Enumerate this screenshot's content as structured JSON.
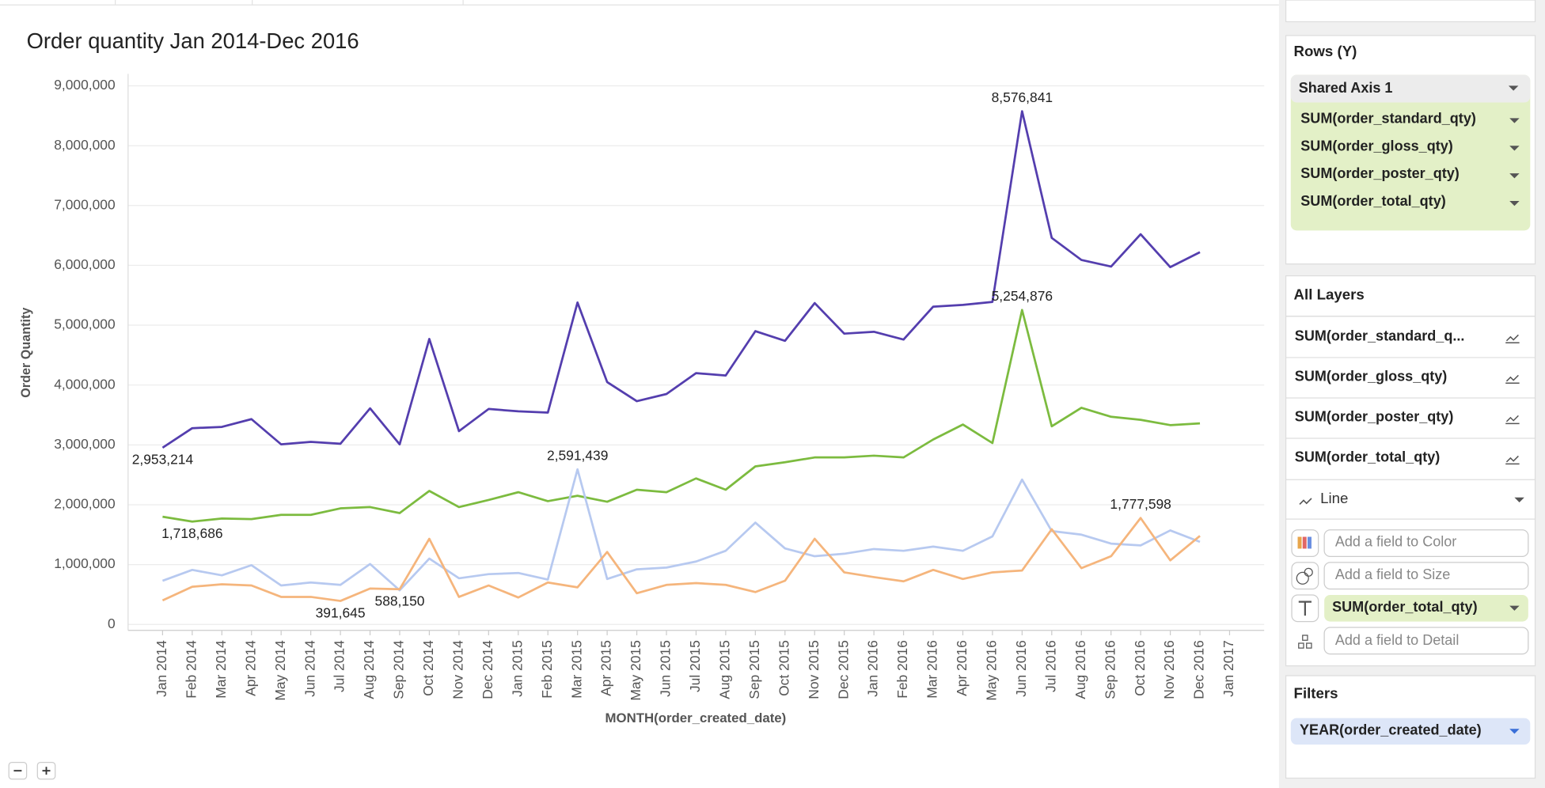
{
  "chart_data": {
    "type": "line",
    "title": "Order quantity Jan 2014-Dec 2016",
    "x_label": "MONTH(order_created_date)",
    "y_label": "Order Quantity",
    "categories": [
      "Jan 2014",
      "Feb 2014",
      "Mar 2014",
      "Apr 2014",
      "May 2014",
      "Jun 2014",
      "Jul 2014",
      "Aug 2014",
      "Sep 2014",
      "Oct 2014",
      "Nov 2014",
      "Dec 2014",
      "Jan 2015",
      "Feb 2015",
      "Mar 2015",
      "Apr 2015",
      "May 2015",
      "Jun 2015",
      "Jul 2015",
      "Aug 2015",
      "Sep 2015",
      "Oct 2015",
      "Nov 2015",
      "Dec 2015",
      "Jan 2016",
      "Feb 2016",
      "Mar 2016",
      "Apr 2016",
      "May 2016",
      "Jun 2016",
      "Jul 2016",
      "Aug 2016",
      "Sep 2016",
      "Oct 2016",
      "Nov 2016",
      "Dec 2016",
      "Jan 2017"
    ],
    "series": [
      {
        "name": "SUM(order_standard_qty)",
        "color": "#7cbb3f",
        "values": [
          1800000,
          1718686,
          1770000,
          1760000,
          1830000,
          1830000,
          1940000,
          1960000,
          1860000,
          2230000,
          1960000,
          2080000,
          2210000,
          2060000,
          2150000,
          2050000,
          2250000,
          2210000,
          2440000,
          2250000,
          2640000,
          2710000,
          2790000,
          2790000,
          2820000,
          2790000,
          3090000,
          3340000,
          3030000,
          5254876,
          3310000,
          3620000,
          3470000,
          3420000,
          3330000,
          3360000,
          null
        ],
        "value_labels": [
          null,
          "1,718,686",
          null,
          null,
          null,
          null,
          null,
          null,
          null,
          null,
          null,
          null,
          null,
          null,
          null,
          null,
          null,
          null,
          null,
          null,
          null,
          null,
          null,
          null,
          null,
          null,
          null,
          null,
          null,
          "5,254,876",
          null,
          null,
          null,
          null,
          null,
          null,
          null
        ]
      },
      {
        "name": "SUM(order_gloss_qty)",
        "color": "#b7c9f0",
        "values": [
          730000,
          910000,
          820000,
          990000,
          650000,
          700000,
          660000,
          1010000,
          570000,
          1100000,
          770000,
          840000,
          860000,
          750000,
          2591439,
          760000,
          920000,
          950000,
          1050000,
          1230000,
          1700000,
          1270000,
          1140000,
          1180000,
          1260000,
          1230000,
          1300000,
          1230000,
          1470000,
          2420000,
          1560000,
          1500000,
          1350000,
          1320000,
          1570000,
          1380000,
          null
        ],
        "value_labels": [
          null,
          null,
          null,
          null,
          null,
          null,
          null,
          null,
          null,
          null,
          null,
          null,
          null,
          null,
          "2,591,439",
          null,
          null,
          null,
          null,
          null,
          null,
          null,
          null,
          null,
          null,
          null,
          null,
          null,
          null,
          null,
          null,
          null,
          null,
          null,
          null,
          null,
          null
        ]
      },
      {
        "name": "SUM(order_poster_qty)",
        "color": "#f5b57c",
        "values": [
          400000,
          630000,
          670000,
          650000,
          460000,
          460000,
          391645,
          600000,
          588150,
          1430000,
          460000,
          650000,
          450000,
          700000,
          620000,
          1210000,
          520000,
          660000,
          690000,
          660000,
          540000,
          730000,
          1430000,
          870000,
          790000,
          720000,
          910000,
          760000,
          870000,
          900000,
          1590000,
          940000,
          1140000,
          1777598,
          1070000,
          1480000,
          null
        ],
        "value_labels": [
          null,
          null,
          null,
          null,
          null,
          null,
          "391,645",
          null,
          "588,150",
          null,
          null,
          null,
          null,
          null,
          null,
          null,
          null,
          null,
          null,
          null,
          null,
          null,
          null,
          null,
          null,
          null,
          null,
          null,
          null,
          null,
          null,
          null,
          null,
          "1,777,598",
          null,
          null,
          null
        ]
      },
      {
        "name": "SUM(order_total_qty)",
        "color": "#543eae",
        "values": [
          2953214,
          3280000,
          3300000,
          3430000,
          3010000,
          3050000,
          3020000,
          3610000,
          3010000,
          4770000,
          3230000,
          3600000,
          3560000,
          3540000,
          5380000,
          4050000,
          3730000,
          3850000,
          4200000,
          4160000,
          4900000,
          4740000,
          5370000,
          4860000,
          4890000,
          4760000,
          5310000,
          5340000,
          5390000,
          8576841,
          6460000,
          6090000,
          5980000,
          6520000,
          5970000,
          6220000,
          null
        ],
        "value_labels": [
          "2,953,214",
          null,
          null,
          null,
          null,
          null,
          null,
          null,
          null,
          null,
          null,
          null,
          null,
          null,
          null,
          null,
          null,
          null,
          null,
          null,
          null,
          null,
          null,
          null,
          null,
          null,
          null,
          null,
          null,
          "8,576,841",
          null,
          null,
          null,
          null,
          null,
          null,
          null
        ]
      }
    ],
    "ylim": [
      -100000,
      9200000
    ],
    "yticks": [
      0,
      {
        "value": 1000000,
        "label": "1,000,000"
      },
      {
        "value": 2000000,
        "label": "2,000,000"
      },
      {
        "value": 3000000,
        "label": "3,000,000"
      },
      {
        "value": 4000000,
        "label": "4,000,000"
      },
      {
        "value": 5000000,
        "label": "5,000,000"
      },
      {
        "value": 6000000,
        "label": "6,000,000"
      },
      {
        "value": 7000000,
        "label": "7,000,000"
      },
      {
        "value": 8000000,
        "label": "8,000,000"
      },
      {
        "value": 9000000,
        "label": "9,000,000"
      }
    ],
    "grid": true
  },
  "panel": {
    "rows_title": "Rows (Y)",
    "shared_axis": "Shared Axis 1",
    "layers_title": "All Layers",
    "layers": [
      "SUM(order_standard_q...",
      "SUM(order_gloss_qty)",
      "SUM(order_poster_qty)",
      "SUM(order_total_qty)"
    ],
    "mark_type": "Line",
    "color_field": "Add a field to Color",
    "size_field": "Add a field to Size",
    "text_field": "SUM(order_total_qty)",
    "detail_field": "Add a field to Detail",
    "filters_title": "Filters",
    "filter": "YEAR(order_created_date)"
  }
}
